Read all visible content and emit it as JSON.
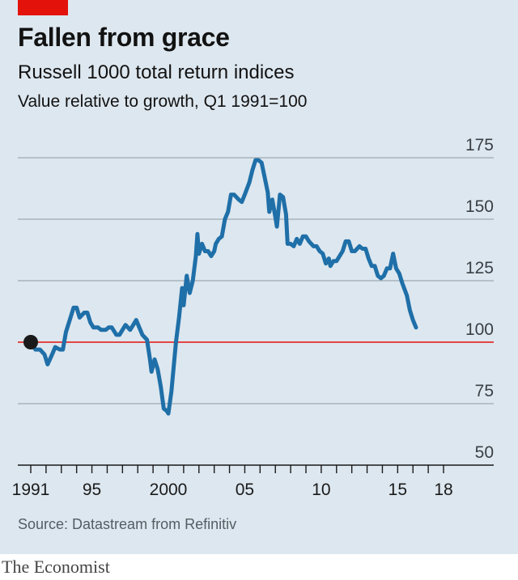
{
  "header": {
    "title": "Fallen from grace",
    "subtitle": "Russell 1000 total return indices",
    "unit_line": "Value relative to growth, Q1 1991=100"
  },
  "footer": {
    "source": "Source: Datastream from Refinitiv",
    "brand": "The Economist"
  },
  "colors": {
    "line": "#1f6fa8",
    "baseline": "#e3120b",
    "grid": "#a9b3bb",
    "marker": "#1a1a1a"
  },
  "chart_data": {
    "type": "line",
    "title": "Fallen from grace",
    "subtitle": "Russell 1000 total return indices",
    "ylabel": "Value relative to growth, Q1 1991=100",
    "ylim": [
      50,
      175
    ],
    "xlim": [
      1991,
      2019
    ],
    "yticks": [
      175,
      150,
      125,
      100,
      75,
      50
    ],
    "xtick_labels": [
      {
        "x": 1991,
        "label": "1991"
      },
      {
        "x": 1995,
        "label": "95"
      },
      {
        "x": 2000,
        "label": "2000"
      },
      {
        "x": 2005,
        "label": "05"
      },
      {
        "x": 2010,
        "label": "10"
      },
      {
        "x": 2015,
        "label": "15"
      },
      {
        "x": 2018,
        "label": "18"
      }
    ],
    "baseline": 100,
    "grid": true,
    "start_marker": {
      "x": 1991,
      "y": 100
    },
    "series": [
      {
        "points": [
          [
            1991.0,
            100
          ],
          [
            1991.3,
            97
          ],
          [
            1991.6,
            97
          ],
          [
            1991.9,
            95
          ],
          [
            1992.1,
            91
          ],
          [
            1992.4,
            95
          ],
          [
            1992.6,
            98
          ],
          [
            1992.9,
            97
          ],
          [
            1993.1,
            97
          ],
          [
            1993.3,
            104
          ],
          [
            1993.6,
            110
          ],
          [
            1993.8,
            114
          ],
          [
            1994.0,
            114
          ],
          [
            1994.2,
            110
          ],
          [
            1994.5,
            112
          ],
          [
            1994.7,
            112
          ],
          [
            1994.9,
            108
          ],
          [
            1995.1,
            106
          ],
          [
            1995.4,
            106
          ],
          [
            1995.6,
            105
          ],
          [
            1995.9,
            105
          ],
          [
            1996.1,
            106
          ],
          [
            1996.3,
            106
          ],
          [
            1996.6,
            103
          ],
          [
            1996.8,
            103
          ],
          [
            1997.0,
            105
          ],
          [
            1997.2,
            107
          ],
          [
            1997.5,
            105
          ],
          [
            1997.7,
            107
          ],
          [
            1997.9,
            109
          ],
          [
            1998.1,
            106
          ],
          [
            1998.3,
            103
          ],
          [
            1998.6,
            101
          ],
          [
            1998.8,
            93
          ],
          [
            1998.9,
            88
          ],
          [
            1999.1,
            93
          ],
          [
            1999.3,
            89
          ],
          [
            1999.5,
            82
          ],
          [
            1999.7,
            73
          ],
          [
            1999.9,
            72
          ],
          [
            2000.0,
            71
          ],
          [
            2000.2,
            80
          ],
          [
            2000.5,
            100
          ],
          [
            2000.7,
            110
          ],
          [
            2000.9,
            122
          ],
          [
            2001.0,
            115
          ],
          [
            2001.2,
            127
          ],
          [
            2001.4,
            120
          ],
          [
            2001.6,
            125
          ],
          [
            2001.8,
            135
          ],
          [
            2001.9,
            144
          ],
          [
            2002.0,
            136
          ],
          [
            2002.2,
            140
          ],
          [
            2002.4,
            137
          ],
          [
            2002.6,
            137
          ],
          [
            2002.8,
            135
          ],
          [
            2003.0,
            137
          ],
          [
            2003.1,
            140
          ],
          [
            2003.3,
            142
          ],
          [
            2003.5,
            143
          ],
          [
            2003.7,
            150
          ],
          [
            2003.9,
            153
          ],
          [
            2004.1,
            160
          ],
          [
            2004.3,
            160
          ],
          [
            2004.6,
            158
          ],
          [
            2004.8,
            157
          ],
          [
            2005.0,
            160
          ],
          [
            2005.3,
            165
          ],
          [
            2005.5,
            170
          ],
          [
            2005.7,
            174
          ],
          [
            2005.9,
            174
          ],
          [
            2006.1,
            173
          ],
          [
            2006.3,
            167
          ],
          [
            2006.5,
            161
          ],
          [
            2006.6,
            153
          ],
          [
            2006.8,
            158
          ],
          [
            2007.0,
            151
          ],
          [
            2007.1,
            147
          ],
          [
            2007.3,
            160
          ],
          [
            2007.5,
            159
          ],
          [
            2007.7,
            152
          ],
          [
            2007.8,
            140
          ],
          [
            2008.0,
            140
          ],
          [
            2008.2,
            139
          ],
          [
            2008.4,
            142
          ],
          [
            2008.6,
            140
          ],
          [
            2008.8,
            143
          ],
          [
            2009.0,
            143
          ],
          [
            2009.2,
            141
          ],
          [
            2009.5,
            139
          ],
          [
            2009.7,
            139
          ],
          [
            2009.9,
            137
          ],
          [
            2010.1,
            136
          ],
          [
            2010.3,
            132
          ],
          [
            2010.5,
            134
          ],
          [
            2010.6,
            131
          ],
          [
            2010.8,
            133
          ],
          [
            2011.0,
            133
          ],
          [
            2011.2,
            135
          ],
          [
            2011.4,
            137
          ],
          [
            2011.6,
            141
          ],
          [
            2011.8,
            141
          ],
          [
            2012.0,
            137
          ],
          [
            2012.2,
            137
          ],
          [
            2012.5,
            139
          ],
          [
            2012.7,
            138
          ],
          [
            2012.9,
            138
          ],
          [
            2013.1,
            134
          ],
          [
            2013.3,
            131
          ],
          [
            2013.5,
            131
          ],
          [
            2013.7,
            127
          ],
          [
            2013.9,
            126
          ],
          [
            2014.1,
            127
          ],
          [
            2014.3,
            130
          ],
          [
            2014.5,
            130
          ],
          [
            2014.7,
            136
          ],
          [
            2014.9,
            130
          ],
          [
            2015.1,
            128
          ],
          [
            2015.3,
            124
          ],
          [
            2015.6,
            119
          ],
          [
            2015.8,
            113
          ],
          [
            2016.0,
            109
          ],
          [
            2016.2,
            106
          ]
        ]
      }
    ]
  }
}
